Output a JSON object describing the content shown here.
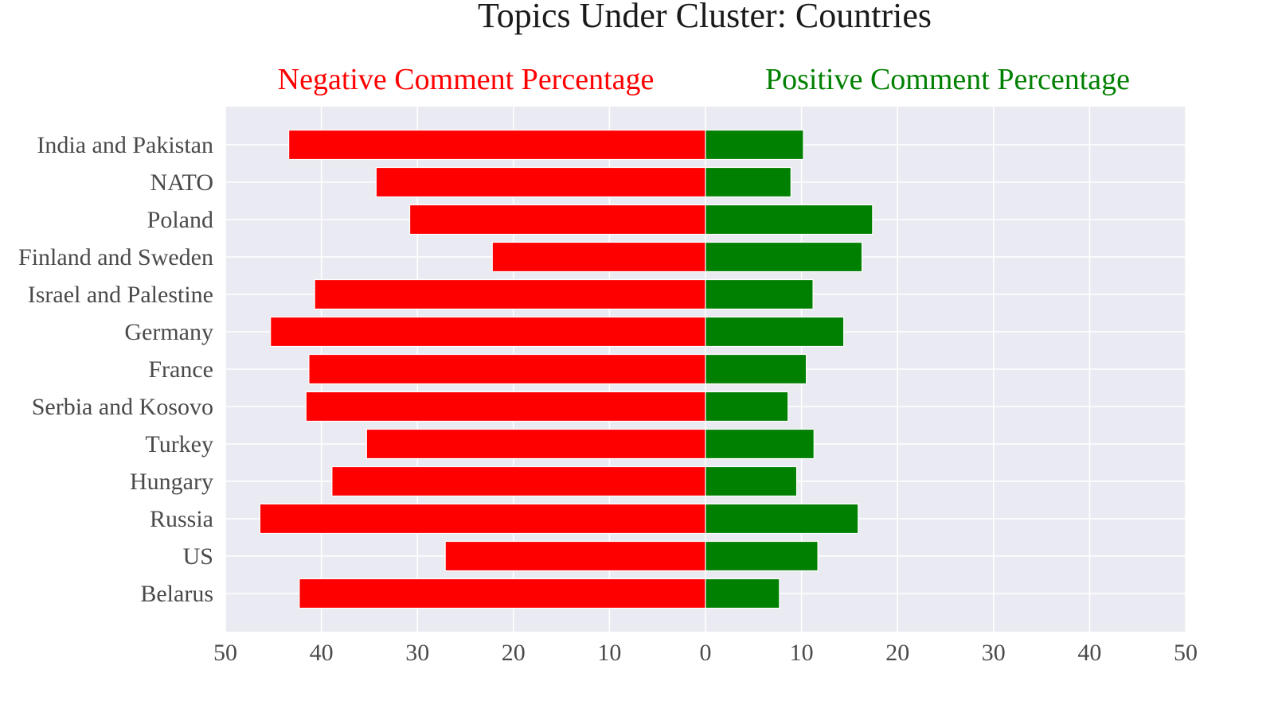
{
  "chart_data": {
    "type": "bar",
    "orientation": "horizontal",
    "layout": "diverging",
    "title": "Topics Under Cluster: Countries",
    "left_label": "Negative Comment Percentage",
    "right_label": "Positive Comment Percentage",
    "categories": [
      "India and Pakistan",
      "NATO",
      "Poland",
      "Finland and Sweden",
      "Israel and Palestine",
      "Germany",
      "France",
      "Serbia and Kosovo",
      "Turkey",
      "Hungary",
      "Russia",
      "US",
      "Belarus"
    ],
    "series": [
      {
        "name": "Negative Comment Percentage",
        "color": "#ff0000",
        "side": "left",
        "values": [
          43.4,
          34.3,
          30.8,
          22.2,
          40.7,
          45.3,
          41.3,
          41.6,
          35.3,
          38.9,
          46.4,
          27.1,
          42.3
        ]
      },
      {
        "name": "Positive Comment Percentage",
        "color": "#008000",
        "side": "right",
        "values": [
          10.2,
          8.9,
          17.4,
          16.3,
          11.2,
          14.4,
          10.5,
          8.6,
          11.3,
          9.5,
          15.9,
          11.7,
          7.7
        ]
      }
    ],
    "xticks": [
      50,
      40,
      30,
      20,
      10,
      0,
      10,
      20,
      30,
      40,
      50
    ],
    "xlim": [
      -50,
      50
    ],
    "grid": true,
    "background": "#eaeaf2"
  }
}
